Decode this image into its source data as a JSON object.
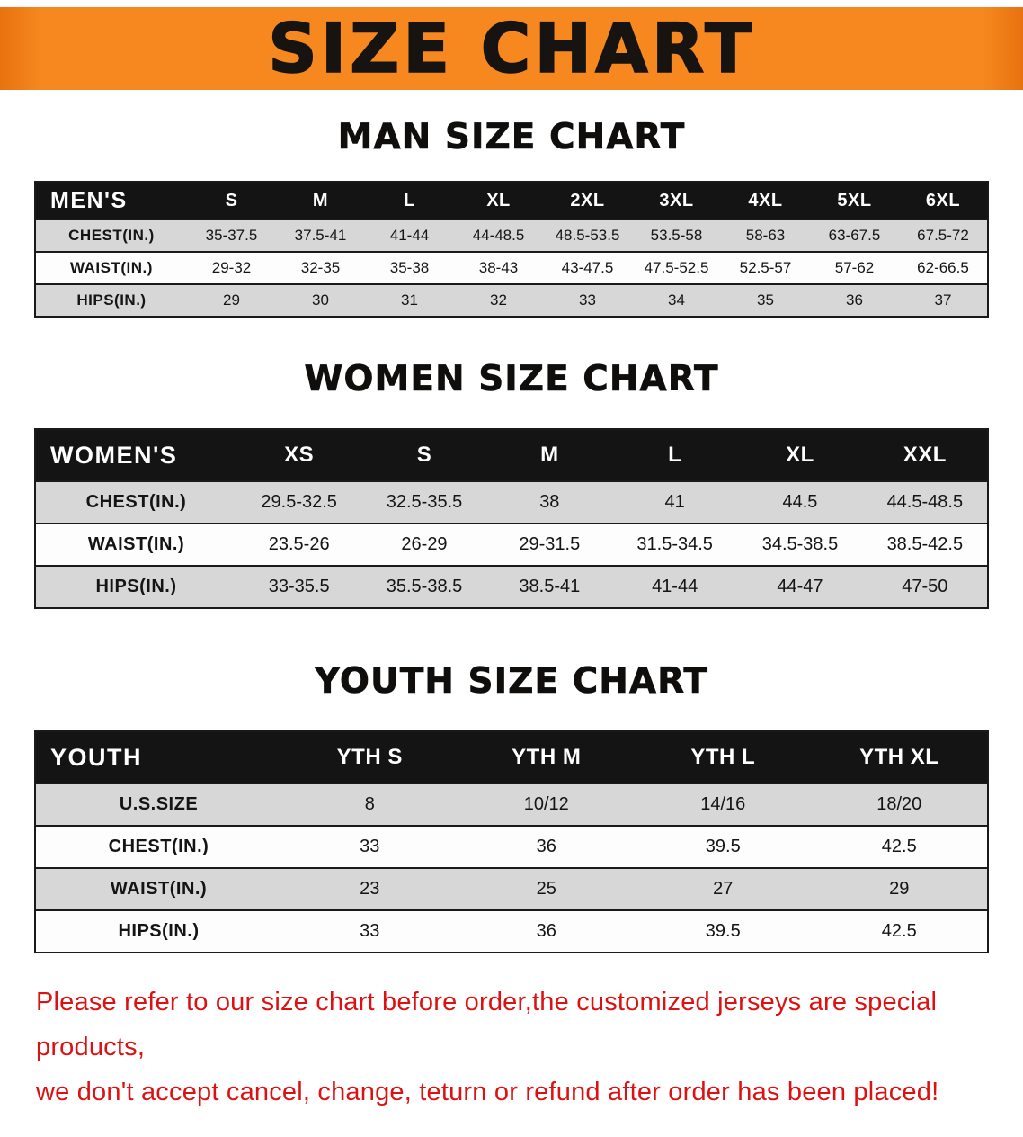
{
  "banner": {
    "title": "SIZE CHART",
    "bg_color": "#f6881f",
    "text_color": "#161310"
  },
  "colors": {
    "table_header_bg": "#141414",
    "table_header_text": "#ffffff",
    "row_stripe": "#d7d7d7",
    "footnote_red": "#dd1111"
  },
  "sections": [
    {
      "id": "men",
      "heading": "MAN SIZE CHART",
      "table": {
        "header": [
          "MEN'S",
          "S",
          "M",
          "L",
          "XL",
          "2XL",
          "3XL",
          "4XL",
          "5XL",
          "6XL"
        ],
        "rows": [
          {
            "label": "CHEST(IN.)",
            "values": [
              "35-37.5",
              "37.5-41",
              "41-44",
              "44-48.5",
              "48.5-53.5",
              "53.5-58",
              "58-63",
              "63-67.5",
              "67.5-72"
            ]
          },
          {
            "label": "WAIST(IN.)",
            "values": [
              "29-32",
              "32-35",
              "35-38",
              "38-43",
              "43-47.5",
              "47.5-52.5",
              "52.5-57",
              "57-62",
              "62-66.5"
            ]
          },
          {
            "label": "HIPS(IN.)",
            "values": [
              "29",
              "30",
              "31",
              "32",
              "33",
              "34",
              "35",
              "36",
              "37"
            ]
          }
        ]
      }
    },
    {
      "id": "women",
      "heading": "WOMEN SIZE CHART",
      "table": {
        "header": [
          "WOMEN'S",
          "XS",
          "S",
          "M",
          "L",
          "XL",
          "XXL"
        ],
        "rows": [
          {
            "label": "CHEST(IN.)",
            "values": [
              "29.5-32.5",
              "32.5-35.5",
              "38",
              "41",
              "44.5",
              "44.5-48.5"
            ]
          },
          {
            "label": "WAIST(IN.)",
            "values": [
              "23.5-26",
              "26-29",
              "29-31.5",
              "31.5-34.5",
              "34.5-38.5",
              "38.5-42.5"
            ]
          },
          {
            "label": "HIPS(IN.)",
            "values": [
              "33-35.5",
              "35.5-38.5",
              "38.5-41",
              "41-44",
              "44-47",
              "47-50"
            ]
          }
        ]
      }
    },
    {
      "id": "youth",
      "heading": "YOUTH SIZE CHART",
      "table": {
        "header": [
          "YOUTH",
          "YTH S",
          "YTH M",
          "YTH L",
          "YTH XL"
        ],
        "rows": [
          {
            "label": "U.S.SIZE",
            "values": [
              "8",
              "10/12",
              "14/16",
              "18/20"
            ]
          },
          {
            "label": "CHEST(IN.)",
            "values": [
              "33",
              "36",
              "39.5",
              "42.5"
            ]
          },
          {
            "label": "WAIST(IN.)",
            "values": [
              "23",
              "25",
              "27",
              "29"
            ]
          },
          {
            "label": "HIPS(IN.)",
            "values": [
              "33",
              "36",
              "39.5",
              "42.5"
            ]
          }
        ]
      }
    }
  ],
  "footnote": {
    "line1": "Please refer to our size chart before order,the customized jerseys are special products,",
    "line2": "we don't accept cancel, change, teturn or refund after order has been placed!"
  }
}
